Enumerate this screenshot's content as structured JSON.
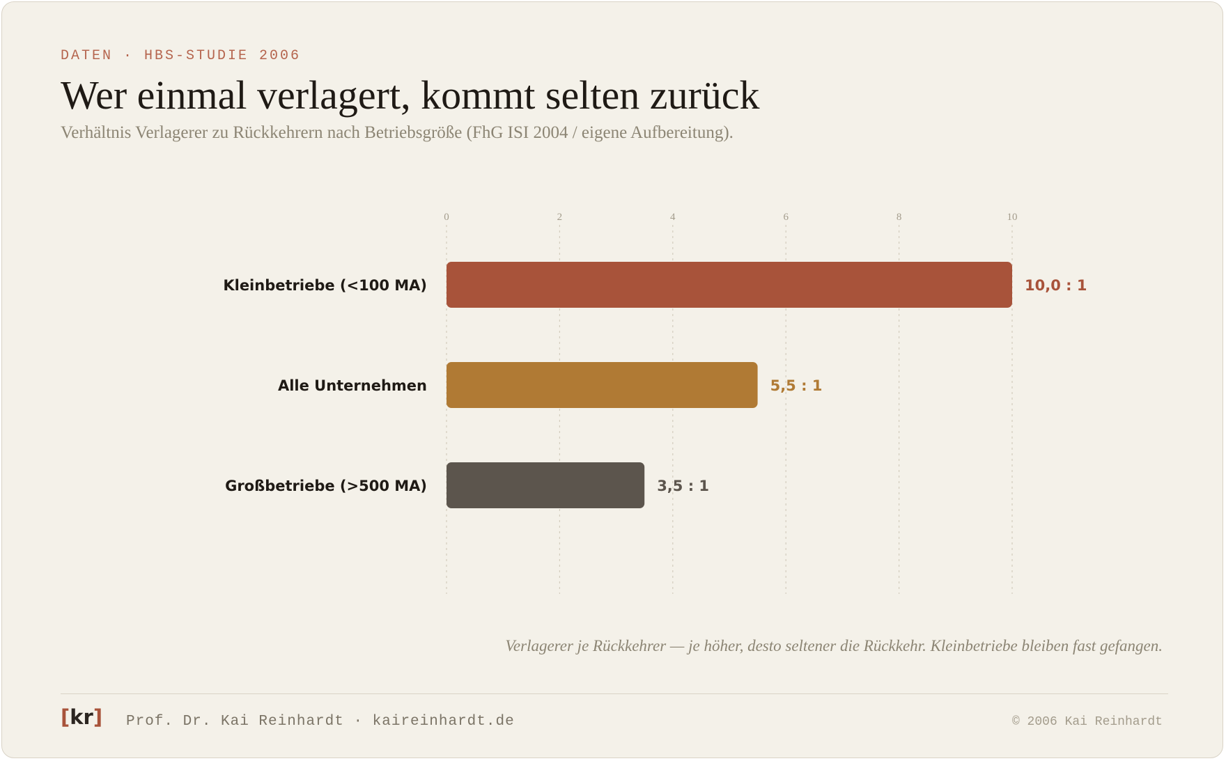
{
  "header": {
    "eyebrow": "DATEN · HBS-STUDIE 2006",
    "title": "Wer einmal verlagert, kommt selten zurück",
    "subtitle": "Verhältnis Verlagerer zu Rückkehrern nach Betriebsgröße (FhG ISI 2004 / eigene Aufbereitung)."
  },
  "chart_data": {
    "type": "bar",
    "orientation": "horizontal",
    "categories": [
      "Kleinbetriebe (<100 MA)",
      "Alle Unternehmen",
      "Großbetriebe (>500 MA)"
    ],
    "values": [
      10.0,
      5.5,
      3.5
    ],
    "value_labels": [
      "10,0 : 1",
      "5,5 : 1",
      "3,5 : 1"
    ],
    "colors": [
      "#a8533a",
      "#b07a34",
      "#5c554d"
    ],
    "xlim": [
      0,
      10
    ],
    "xticks": [
      0,
      2,
      4,
      6,
      8,
      10
    ],
    "grid": true,
    "legend": "none"
  },
  "caption": "Verlagerer je Rückkehrer — je höher, desto seltener die Rückkehr. Kleinbetriebe bleiben fast gefangen.",
  "footer": {
    "logo_open": "[",
    "logo_text": "kr",
    "logo_close": "]",
    "author": "Prof. Dr. Kai Reinhardt · kaireinhardt.de",
    "copyright": "© 2006 Kai Reinhardt"
  }
}
